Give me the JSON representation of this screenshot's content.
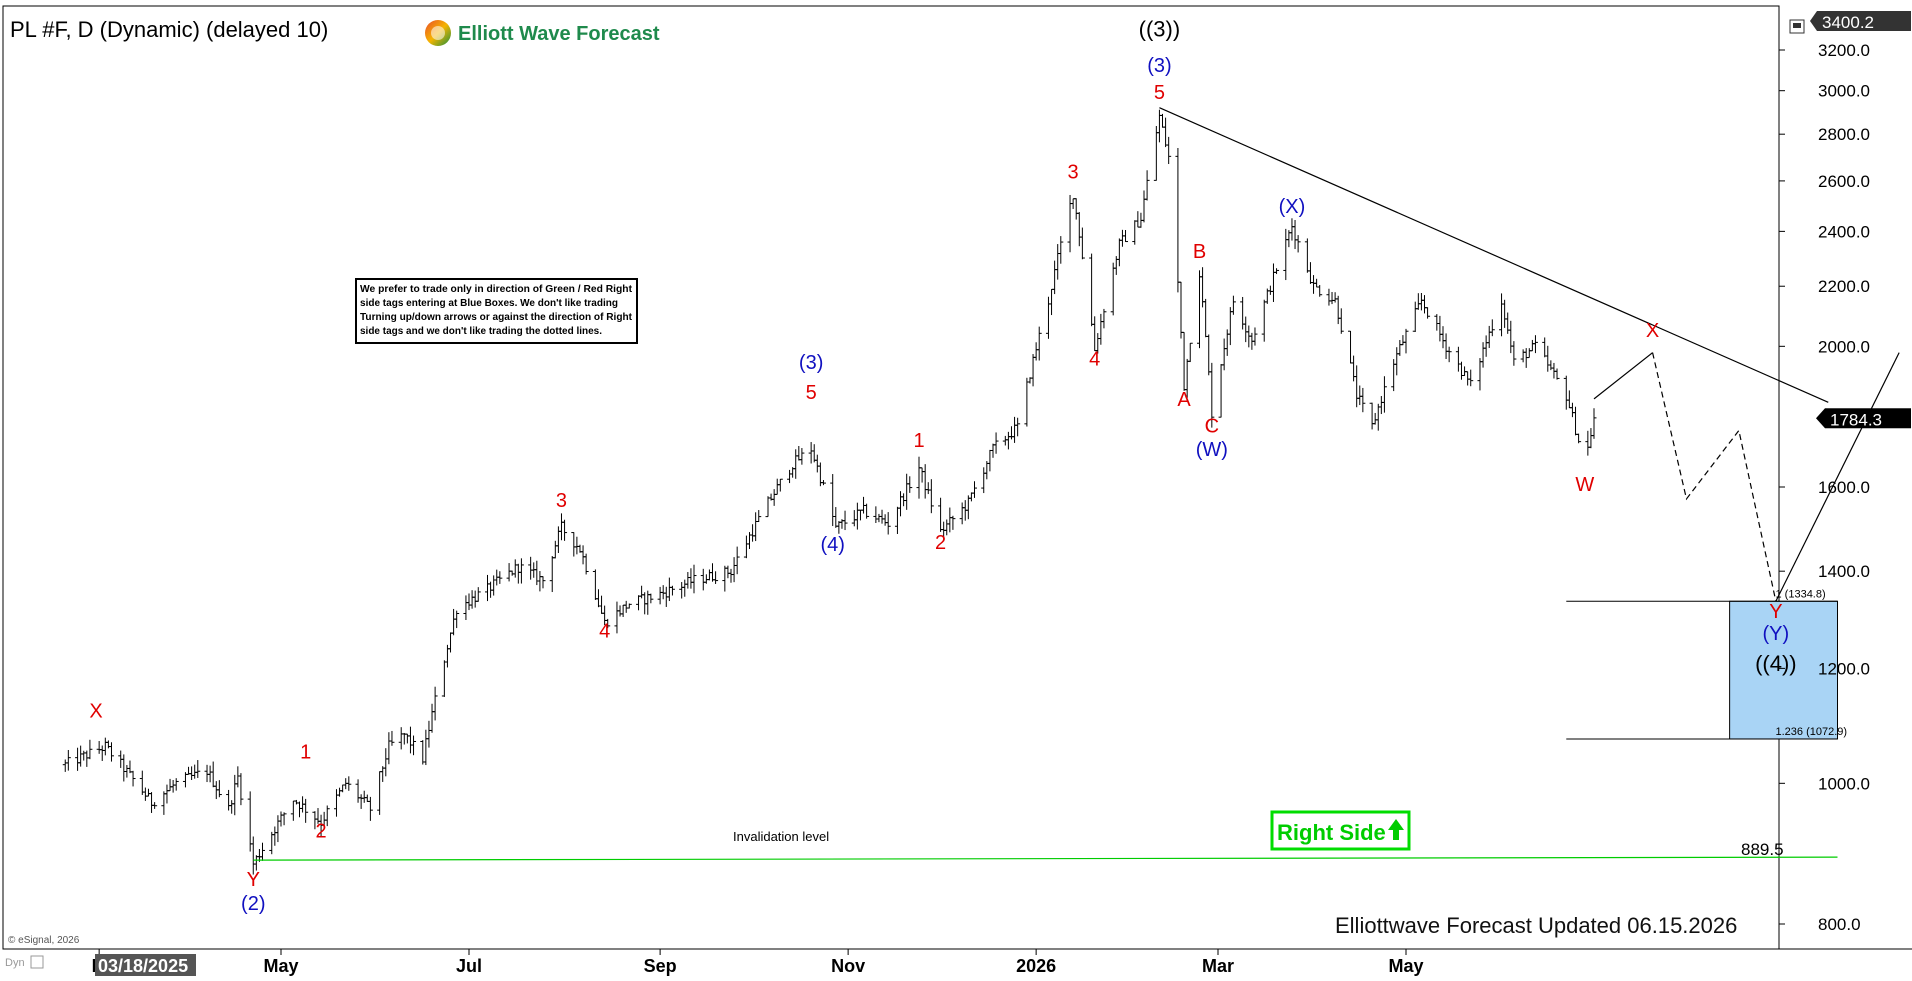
{
  "header": {
    "symbol_title": "PL #F, D (Dynamic) (delayed 10)",
    "logo_text": "Elliott Wave Forecast"
  },
  "note_lines": [
    "We prefer to trade only in direction of Green / Red Right",
    "side tags entering at Blue Boxes. We don't like trading",
    "Turning up/down arrows or against the direction of Right",
    "side tags and we don't like trading the dotted lines."
  ],
  "footer": {
    "updated_text": "Elliottwave Forecast Updated 06.15.2026",
    "copyright": "© eSignal, 2026",
    "corner_label": "Dyn",
    "cursor_date": "03/18/2025"
  },
  "right_side_tag": {
    "label": "Right Side",
    "arrow": "up-arrow-icon",
    "color": "#00dd00"
  },
  "colors": {
    "red_label": "#e00000",
    "blue_label": "#1010c0",
    "black_label": "#000000",
    "box_fill": "#a9d4f5",
    "invalidation_line": "#00cc00"
  },
  "chart_data": {
    "type": "ohlc-bar",
    "instrument": "PL #F",
    "timeframe": "D",
    "y_scale": "log",
    "ylim": [
      760,
      3450
    ],
    "y_ticks": [
      800,
      1000,
      1200,
      1400,
      1600,
      2000,
      2200,
      2400,
      2600,
      2800,
      3000,
      3200
    ],
    "y_tick_labels": [
      "800.0",
      "1000.0",
      "1200.0",
      "1400.0",
      "1600.0",
      "2000.0",
      "2200.0",
      "2400.0",
      "2600.0",
      "2800.0",
      "3000.0",
      "3200.0"
    ],
    "top_price_label": "3400.2",
    "last_price": {
      "value": 1784.3,
      "label": "1784.3"
    },
    "x_ticks": [
      {
        "label": "M",
        "date": "2025-03-03"
      },
      {
        "label": "May",
        "date": "2025-05-01"
      },
      {
        "label": "Jul",
        "date": "2025-07-01"
      },
      {
        "label": "Sep",
        "date": "2025-09-01"
      },
      {
        "label": "Nov",
        "date": "2025-11-01"
      },
      {
        "label": "2026",
        "date": "2026-01-01"
      },
      {
        "label": "Mar",
        "date": "2026-03-01"
      },
      {
        "label": "May",
        "date": "2026-05-01"
      }
    ],
    "price_path": [
      [
        "2025-02-20",
        1030
      ],
      [
        "2025-03-05",
        1060
      ],
      [
        "2025-03-20",
        970
      ],
      [
        "2025-03-28",
        1000
      ],
      [
        "2025-04-07",
        1020
      ],
      [
        "2025-04-14",
        960
      ],
      [
        "2025-04-17",
        1010
      ],
      [
        "2025-04-22",
        880
      ],
      [
        "2025-05-05",
        975
      ],
      [
        "2025-05-09",
        960
      ],
      [
        "2025-05-14",
        940
      ],
      [
        "2025-05-22",
        1000
      ],
      [
        "2025-05-30",
        960
      ],
      [
        "2025-06-05",
        1060
      ],
      [
        "2025-06-10",
        1080
      ],
      [
        "2025-06-16",
        1040
      ],
      [
        "2025-06-27",
        1320
      ],
      [
        "2025-07-07",
        1360
      ],
      [
        "2025-07-17",
        1410
      ],
      [
        "2025-07-25",
        1380
      ],
      [
        "2025-07-31",
        1500
      ],
      [
        "2025-08-06",
        1450
      ],
      [
        "2025-08-14",
        1290
      ],
      [
        "2025-08-22",
        1330
      ],
      [
        "2025-09-01",
        1350
      ],
      [
        "2025-09-12",
        1380
      ],
      [
        "2025-09-24",
        1400
      ],
      [
        "2025-10-06",
        1560
      ],
      [
        "2025-10-14",
        1660
      ],
      [
        "2025-10-20",
        1700
      ],
      [
        "2025-10-28",
        1500
      ],
      [
        "2025-11-06",
        1540
      ],
      [
        "2025-11-14",
        1510
      ],
      [
        "2025-11-24",
        1650
      ],
      [
        "2025-12-01",
        1490
      ],
      [
        "2025-12-10",
        1560
      ],
      [
        "2025-12-18",
        1700
      ],
      [
        "2025-12-26",
        1760
      ],
      [
        "2026-01-05",
        2150
      ],
      [
        "2026-01-13",
        2550
      ],
      [
        "2026-01-20",
        1990
      ],
      [
        "2026-01-28",
        2350
      ],
      [
        "2026-02-04",
        2450
      ],
      [
        "2026-02-10",
        2880
      ],
      [
        "2026-02-13",
        2700
      ],
      [
        "2026-02-18",
        1880
      ],
      [
        "2026-02-23",
        2250
      ],
      [
        "2026-02-27",
        1800
      ],
      [
        "2026-03-06",
        2150
      ],
      [
        "2026-03-12",
        2020
      ],
      [
        "2026-03-18",
        2200
      ],
      [
        "2026-03-25",
        2420
      ],
      [
        "2026-04-01",
        2200
      ],
      [
        "2026-04-08",
        2150
      ],
      [
        "2026-04-15",
        1850
      ],
      [
        "2026-04-20",
        1760
      ],
      [
        "2026-04-27",
        1950
      ],
      [
        "2026-05-06",
        2150
      ],
      [
        "2026-05-14",
        2000
      ],
      [
        "2026-05-22",
        1880
      ],
      [
        "2026-06-01",
        2150
      ],
      [
        "2026-06-05",
        1950
      ],
      [
        "2026-06-12",
        2000
      ],
      [
        "2026-06-22",
        1850
      ],
      [
        "2026-06-28",
        1660
      ],
      [
        "2026-07-01",
        1784
      ]
    ],
    "trendline": {
      "from": [
        "2026-02-10",
        2920
      ],
      "to": [
        "2026-09-15",
        1830
      ]
    },
    "projection_solid": [
      [
        "2026-07-01",
        1840
      ],
      [
        "2026-07-20",
        1980
      ]
    ],
    "projection_dashed": [
      [
        "2026-07-20",
        1980
      ],
      [
        "2026-07-31",
        1570
      ],
      [
        "2026-08-17",
        1750
      ],
      [
        "2026-08-29",
        1334.8
      ]
    ],
    "projection_final": [
      [
        "2026-08-29",
        1334.8
      ],
      [
        "2026-10-08",
        1980
      ]
    ],
    "target_box": {
      "from_date": "2026-08-14",
      "to_date": "2026-09-18",
      "line_from_date": "2026-06-22",
      "levels": [
        {
          "value": 1334.8,
          "label": "1 (1334.8)"
        },
        {
          "value": 1072.9,
          "label": "1.236 (1072.9)"
        }
      ]
    },
    "invalidation": {
      "value": 889.5,
      "label": "889.5",
      "text": "Invalidation level",
      "from_date": "2025-04-22",
      "to_date": "2026-09-18"
    },
    "wave_labels": [
      {
        "text": "X",
        "date": "2025-03-02",
        "price": 1110,
        "color": "red",
        "size": 20
      },
      {
        "text": "Y",
        "date": "2025-04-22",
        "price": 850,
        "color": "red",
        "size": 20
      },
      {
        "text": "(2)",
        "date": "2025-04-22",
        "price": 818,
        "color": "blue",
        "size": 20
      },
      {
        "text": "1",
        "date": "2025-05-09",
        "price": 1040,
        "color": "red",
        "size": 20
      },
      {
        "text": "2",
        "date": "2025-05-14",
        "price": 918,
        "color": "red",
        "size": 20
      },
      {
        "text": "3",
        "date": "2025-07-31",
        "price": 1550,
        "color": "red",
        "size": 20
      },
      {
        "text": "4",
        "date": "2025-08-14",
        "price": 1260,
        "color": "red",
        "size": 20
      },
      {
        "text": "(3)",
        "date": "2025-10-20",
        "price": 1930,
        "color": "blue",
        "size": 20
      },
      {
        "text": "5",
        "date": "2025-10-20",
        "price": 1840,
        "color": "red",
        "size": 20
      },
      {
        "text": "(4)",
        "date": "2025-10-27",
        "price": 1445,
        "color": "blue",
        "size": 20
      },
      {
        "text": "1",
        "date": "2025-11-24",
        "price": 1705,
        "color": "red",
        "size": 20
      },
      {
        "text": "2",
        "date": "2025-12-01",
        "price": 1450,
        "color": "red",
        "size": 20
      },
      {
        "text": "3",
        "date": "2026-01-13",
        "price": 2610,
        "color": "red",
        "size": 20
      },
      {
        "text": "4",
        "date": "2026-01-20",
        "price": 1940,
        "color": "red",
        "size": 20
      },
      {
        "text": "((3))",
        "date": "2026-02-10",
        "price": 3270,
        "color": "black",
        "size": 22
      },
      {
        "text": "(3)",
        "date": "2026-02-10",
        "price": 3090,
        "color": "blue",
        "size": 20
      },
      {
        "text": "5",
        "date": "2026-02-10",
        "price": 2960,
        "color": "red",
        "size": 20
      },
      {
        "text": "B",
        "date": "2026-02-23",
        "price": 2300,
        "color": "red",
        "size": 20
      },
      {
        "text": "A",
        "date": "2026-02-18",
        "price": 1820,
        "color": "red",
        "size": 20
      },
      {
        "text": "C",
        "date": "2026-02-27",
        "price": 1745,
        "color": "red",
        "size": 20
      },
      {
        "text": "(W)",
        "date": "2026-02-27",
        "price": 1680,
        "color": "blue",
        "size": 20
      },
      {
        "text": "(X)",
        "date": "2026-03-25",
        "price": 2470,
        "color": "blue",
        "size": 20
      },
      {
        "text": "W",
        "date": "2026-06-28",
        "price": 1590,
        "color": "red",
        "size": 20
      },
      {
        "text": "X",
        "date": "2026-07-20",
        "price": 2030,
        "color": "red",
        "size": 20
      },
      {
        "text": "Y",
        "date": "2026-08-29",
        "price": 1300,
        "color": "red",
        "size": 20
      },
      {
        "text": "(Y)",
        "date": "2026-08-29",
        "price": 1255,
        "color": "blue",
        "size": 20
      },
      {
        "text": "((4))",
        "date": "2026-08-29",
        "price": 1195,
        "color": "black",
        "size": 22
      }
    ]
  }
}
